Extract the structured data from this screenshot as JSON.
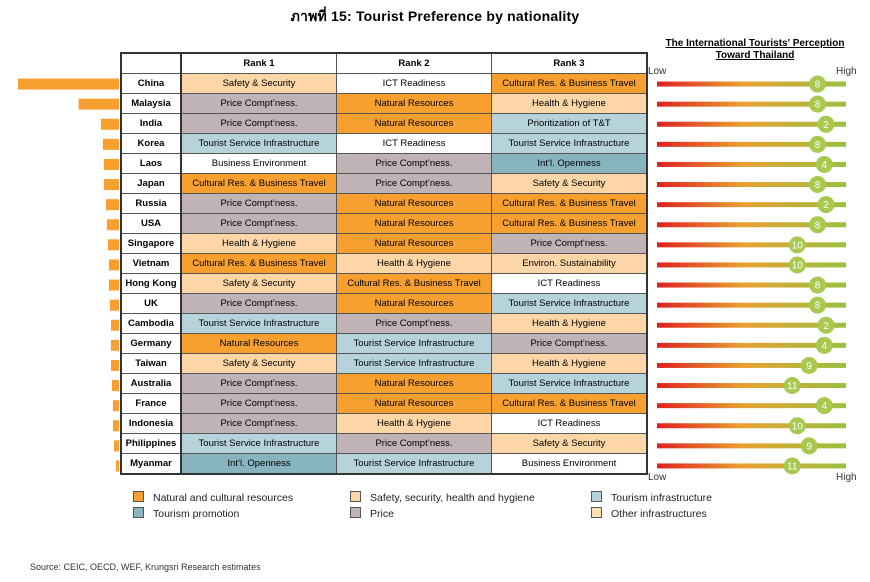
{
  "title": "ภาพที่ 15: Tourist Preference by nationality",
  "table": {
    "headers": [
      "",
      "Rank 1",
      "Rank 2",
      "Rank 3"
    ],
    "rows": [
      {
        "country": "China",
        "ranks": [
          "Safety & Security",
          "ICT Readiness",
          "Cultural Res. & Business Travel"
        ],
        "cats": [
          "safety",
          "white",
          "natural"
        ]
      },
      {
        "country": "Malaysia",
        "ranks": [
          "Price Compt’ness.",
          "Natural Resources",
          "Health & Hygiene"
        ],
        "cats": [
          "price",
          "natural",
          "safety"
        ]
      },
      {
        "country": "India",
        "ranks": [
          "Price Compt’ness.",
          "Natural Resources",
          "Prioritization of T&T"
        ],
        "cats": [
          "price",
          "natural",
          "infra"
        ]
      },
      {
        "country": "Korea",
        "ranks": [
          "Tourist Service Infrastructure",
          "ICT Readiness",
          "Tourist Service Infrastructure"
        ],
        "cats": [
          "infra",
          "white",
          "infra"
        ]
      },
      {
        "country": "Laos",
        "ranks": [
          "Business Environment",
          "Price Compt’ness.",
          "Int’l. Openness"
        ],
        "cats": [
          "white",
          "price",
          "promo"
        ]
      },
      {
        "country": "Japan",
        "ranks": [
          "Cultural Res. & Business Travel",
          "Price Compt’ness.",
          "Safety & Security"
        ],
        "cats": [
          "natural",
          "price",
          "safety"
        ]
      },
      {
        "country": "Russia",
        "ranks": [
          "Price Compt’ness.",
          "Natural Resources",
          "Cultural Res. & Business Travel"
        ],
        "cats": [
          "price",
          "natural",
          "natural"
        ]
      },
      {
        "country": "USA",
        "ranks": [
          "Price Compt’ness.",
          "Natural Resources",
          "Cultural Res. & Business Travel"
        ],
        "cats": [
          "price",
          "natural",
          "natural"
        ]
      },
      {
        "country": "Singapore",
        "ranks": [
          "Health & Hygiene",
          "Natural Resources",
          "Price Compt’ness."
        ],
        "cats": [
          "safety",
          "natural",
          "price"
        ]
      },
      {
        "country": "Vietnam",
        "ranks": [
          "Cultural Res. & Business Travel",
          "Health & Hygiene",
          "Environ. Sustainability"
        ],
        "cats": [
          "natural",
          "safety",
          "safety"
        ]
      },
      {
        "country": "Hong Kong",
        "ranks": [
          "Safety & Security",
          "Cultural Res. & Business Travel",
          "ICT Readiness"
        ],
        "cats": [
          "safety",
          "natural",
          "white"
        ]
      },
      {
        "country": "UK",
        "ranks": [
          "Price Compt’ness.",
          "Natural Resources",
          "Tourist Service Infrastructure"
        ],
        "cats": [
          "price",
          "natural",
          "infra"
        ]
      },
      {
        "country": "Cambodia",
        "ranks": [
          "Tourist Service Infrastructure",
          "Price Compt’ness.",
          "Health & Hygiene"
        ],
        "cats": [
          "infra",
          "price",
          "safety"
        ]
      },
      {
        "country": "Germany",
        "ranks": [
          "Natural Resources",
          "Tourist Service Infrastructure",
          "Price Compt’ness."
        ],
        "cats": [
          "natural",
          "infra",
          "price"
        ]
      },
      {
        "country": "Taiwan",
        "ranks": [
          "Safety & Security",
          "Tourist Service Infrastructure",
          "Health & Hygiene"
        ],
        "cats": [
          "safety",
          "infra",
          "safety"
        ]
      },
      {
        "country": "Australia",
        "ranks": [
          "Price Compt’ness.",
          "Natural Resources",
          "Tourist Service Infrastructure"
        ],
        "cats": [
          "price",
          "natural",
          "infra"
        ]
      },
      {
        "country": "France",
        "ranks": [
          "Price Compt’ness.",
          "Natural Resources",
          "Cultural Res. & Business Travel"
        ],
        "cats": [
          "price",
          "natural",
          "natural"
        ]
      },
      {
        "country": "Indonesia",
        "ranks": [
          "Price Compt’ness.",
          "Health & Hygiene",
          "ICT Readiness"
        ],
        "cats": [
          "price",
          "safety",
          "white"
        ]
      },
      {
        "country": "Philippines",
        "ranks": [
          "Tourist Service Infrastructure",
          "Price Compt’ness.",
          "Safety & Security"
        ],
        "cats": [
          "infra",
          "price",
          "safety"
        ]
      },
      {
        "country": "Myanmar",
        "ranks": [
          "Int’l. Openness",
          "Tourist Service Infrastructure",
          "Business Environment"
        ],
        "cats": [
          "promo",
          "infra",
          "white"
        ]
      }
    ]
  },
  "chart_data": {
    "type": "bar",
    "categories": [
      "China",
      "Malaysia",
      "India",
      "Korea",
      "Laos",
      "Japan",
      "Russia",
      "USA",
      "Singapore",
      "Vietnam",
      "Hong Kong",
      "UK",
      "Cambodia",
      "Germany",
      "Taiwan",
      "Australia",
      "France",
      "Indonesia",
      "Philippines",
      "Myanmar"
    ],
    "tourist_share": [
      1.0,
      0.4,
      0.18,
      0.16,
      0.15,
      0.15,
      0.13,
      0.12,
      0.11,
      0.1,
      0.1,
      0.09,
      0.08,
      0.08,
      0.08,
      0.07,
      0.06,
      0.06,
      0.05,
      0.03
    ],
    "perception": {
      "title": "The International Tourists' Perception Toward Thailand",
      "low_label": "Low",
      "high_label": "High",
      "ranks": [
        8,
        8,
        2,
        8,
        4,
        8,
        2,
        8,
        10,
        10,
        8,
        8,
        2,
        4,
        9,
        11,
        4,
        10,
        9,
        11
      ],
      "levels": [
        0.95,
        0.95,
        1.0,
        0.95,
        0.99,
        0.95,
        1.0,
        0.95,
        0.83,
        0.83,
        0.95,
        0.95,
        1.0,
        0.99,
        0.9,
        0.8,
        0.99,
        0.83,
        0.9,
        0.8
      ]
    },
    "colors": {
      "bar": "#f7a030",
      "low": "#e02020",
      "high": "#9ac040",
      "marker": "#a8c850"
    }
  },
  "legend": [
    {
      "label": "Natural and cultural resources",
      "color": "#f7a030"
    },
    {
      "label": "Safety, security, health and hygiene",
      "color": "#fcd6a6"
    },
    {
      "label": "Tourism infrastructure",
      "color": "#b6d3db"
    },
    {
      "label": "Tourism promotion",
      "color": "#88b4bf"
    },
    {
      "label": "Price",
      "color": "#c0b3b5"
    },
    {
      "label": "Other infrastructures",
      "color": "#fde0b0"
    }
  ],
  "source": "Source: CEIC, OECD, WEF, Krungsri Research estimates"
}
